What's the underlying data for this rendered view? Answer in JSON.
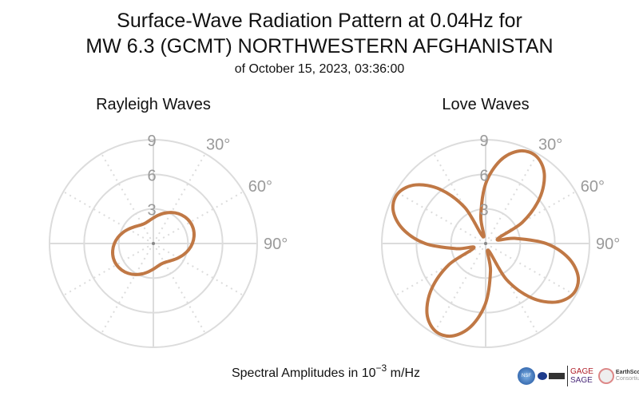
{
  "chart_data": [
    {
      "type": "polar-line",
      "title": "Rayleigh Waves",
      "r_ticks": [
        3,
        6,
        9
      ],
      "r_range": [
        0,
        9
      ],
      "angle_ticks": [
        "30°",
        "60°",
        "90°"
      ],
      "angle_step_deg": 10,
      "theta_deg": [
        0,
        10,
        20,
        30,
        40,
        50,
        60,
        70,
        80,
        90,
        100,
        110,
        120,
        130,
        140,
        150,
        160,
        170,
        180,
        190,
        200,
        210,
        220,
        230,
        240,
        250,
        260,
        270,
        280,
        290,
        300,
        310,
        320,
        330,
        340,
        350
      ],
      "r": [
        2.22,
        2.49,
        2.8,
        3.11,
        3.38,
        3.58,
        3.69,
        3.69,
        3.58,
        3.38,
        3.11,
        2.8,
        2.49,
        2.22,
        2.02,
        1.91,
        1.91,
        2.02,
        2.22,
        2.49,
        2.8,
        3.11,
        3.38,
        3.58,
        3.69,
        3.69,
        3.58,
        3.38,
        3.11,
        2.8,
        2.49,
        2.22,
        2.02,
        1.91,
        1.91,
        2.02
      ]
    },
    {
      "type": "polar-line",
      "title": "Love Waves",
      "r_ticks": [
        3,
        6,
        9
      ],
      "r_range": [
        0,
        9
      ],
      "angle_ticks": [
        "30°",
        "60°",
        "90°"
      ],
      "theta_deg": [
        0,
        10,
        20,
        30,
        40,
        50,
        60,
        70,
        80,
        90,
        100,
        110,
        120,
        130,
        140,
        150,
        160,
        170,
        180,
        190,
        200,
        210,
        220,
        230,
        240,
        250,
        260,
        270,
        280,
        290,
        300,
        310,
        320,
        330,
        340,
        350
      ],
      "r": [
        5.18,
        7.31,
        8.54,
        8.75,
        7.91,
        6.11,
        3.68,
        1.08,
        2.58,
        5.24,
        7.3,
        8.54,
        8.75,
        7.91,
        6.13,
        3.59,
        0.62,
        2.42,
        5.17,
        7.3,
        8.54,
        8.75,
        7.91,
        6.11,
        3.68,
        1.08,
        2.58,
        5.24,
        7.3,
        8.54,
        8.75,
        7.91,
        6.13,
        3.59,
        0.62,
        2.42
      ]
    }
  ],
  "title_line1": "Surface-Wave Radiation Pattern at 0.04Hz for",
  "title_line2": "MW 6.3 (GCMT) NORTHWESTERN AFGHANISTAN",
  "subtitle": "of October 15, 2023, 03:36:00",
  "footer": {
    "prefix": "Spectral Amplitudes in 10",
    "exponent": "−3",
    "suffix": " m/Hz"
  },
  "logos": {
    "nsf": "NSF",
    "gage": "GAGE",
    "sage": "SAGE",
    "earthscope": "EarthScope",
    "consortium": "Consortium"
  },
  "colors": {
    "curve": "#c07845",
    "grid": "#dcdcdc",
    "tick": "#9a9a9a"
  }
}
